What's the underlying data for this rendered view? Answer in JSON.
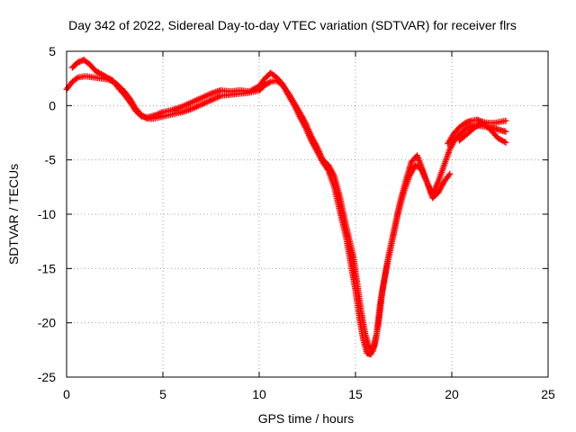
{
  "chart_data": {
    "type": "scatter",
    "title": "Day 342 of 2022, Sidereal Day-to-day VTEC variation (SDTVAR) for receiver flrs",
    "xlabel": "GPS time / hours",
    "ylabel": "SDTVAR / TECUs",
    "xlim": [
      0,
      25
    ],
    "ylim": [
      -25,
      5
    ],
    "xticks": [
      0,
      5,
      10,
      15,
      20,
      25
    ],
    "yticks": [
      -25,
      -20,
      -15,
      -10,
      -5,
      0,
      5
    ],
    "grid": true,
    "marker": "plus",
    "color": "#ff0000",
    "series": [
      {
        "x": [
          0.0,
          0.3,
          0.6,
          1.0,
          1.4,
          1.8,
          2.2,
          2.6,
          3.0,
          3.3,
          3.6,
          3.9,
          4.2,
          4.5,
          5.0,
          5.5,
          6.0,
          6.5,
          7.0,
          7.5,
          8.0,
          8.5,
          9.0,
          9.5,
          10.0,
          10.3,
          10.6,
          10.9,
          11.2,
          11.5,
          11.8,
          12.1,
          12.4,
          12.7,
          13.0,
          13.3,
          13.6,
          13.9,
          14.2,
          14.5,
          14.7,
          14.9,
          15.1,
          15.3,
          15.5,
          15.7,
          15.9,
          16.1,
          16.3,
          16.6,
          16.9,
          17.2,
          17.5,
          17.8,
          18.1,
          18.4,
          18.7,
          19.0,
          19.3,
          19.6,
          19.9,
          20.2,
          20.5,
          20.8,
          21.2,
          21.6,
          22.0,
          22.4,
          22.8
        ],
        "y": [
          1.5,
          2.2,
          2.6,
          2.7,
          2.6,
          2.5,
          2.4,
          2.0,
          1.3,
          0.6,
          -0.3,
          -0.9,
          -1.2,
          -1.2,
          -1.0,
          -0.8,
          -0.6,
          -0.3,
          0.1,
          0.5,
          0.9,
          1.0,
          1.1,
          1.2,
          1.4,
          1.9,
          2.2,
          2.3,
          1.9,
          1.2,
          0.3,
          -0.6,
          -1.6,
          -2.8,
          -3.8,
          -5.0,
          -5.5,
          -6.5,
          -8.5,
          -11.0,
          -12.5,
          -14.0,
          -16.5,
          -19.0,
          -21.0,
          -22.2,
          -22.6,
          -21.0,
          -18.0,
          -15.0,
          -12.5,
          -10.0,
          -8.0,
          -6.5,
          -5.5,
          -5.8,
          -7.0,
          -8.2,
          -7.0,
          -5.5,
          -4.0,
          -3.0,
          -2.5,
          -2.0,
          -1.8,
          -1.9,
          -2.0,
          -2.2,
          -2.4
        ]
      },
      {
        "x": [
          0.3,
          0.6,
          0.9,
          1.2,
          1.5,
          1.8,
          2.1,
          2.4,
          2.7,
          3.0,
          3.3,
          3.6,
          3.9,
          4.2,
          4.6,
          5.0,
          5.5,
          6.0,
          6.5,
          7.0,
          7.5,
          8.0,
          8.5,
          9.0,
          9.5,
          10.0,
          10.3,
          10.6,
          10.9,
          11.2,
          11.5,
          11.8,
          12.1,
          12.4,
          12.7,
          13.0,
          13.3,
          13.6,
          13.9,
          14.2,
          14.5,
          14.8,
          15.0,
          15.2,
          15.4,
          15.6,
          15.8,
          16.0,
          16.2,
          16.4,
          16.7,
          17.0,
          17.3,
          17.6,
          17.9,
          18.2,
          18.4,
          18.7,
          19.0,
          19.3,
          19.6,
          19.9
        ],
        "y": [
          3.5,
          4.0,
          4.2,
          3.8,
          3.2,
          2.9,
          2.6,
          2.3,
          1.6,
          1.0,
          0.3,
          -0.5,
          -1.0,
          -1.1,
          -0.9,
          -0.6,
          -0.4,
          -0.1,
          0.3,
          0.7,
          1.1,
          1.4,
          1.3,
          1.4,
          1.3,
          1.8,
          2.5,
          3.0,
          2.6,
          2.0,
          1.0,
          0.1,
          -1.0,
          -2.0,
          -3.2,
          -4.2,
          -5.2,
          -6.0,
          -7.5,
          -9.8,
          -12.0,
          -15.0,
          -17.0,
          -19.5,
          -21.5,
          -22.8,
          -22.9,
          -22.0,
          -20.0,
          -17.0,
          -14.0,
          -11.5,
          -9.0,
          -7.0,
          -5.2,
          -4.6,
          -5.5,
          -7.0,
          -8.5,
          -8.0,
          -7.0,
          -6.3
        ]
      },
      {
        "x": [
          19.8,
          20.1,
          20.4,
          20.7,
          21.0,
          21.3,
          21.6,
          21.9,
          22.2,
          22.5,
          22.8
        ],
        "y": [
          -3.5,
          -2.6,
          -2.0,
          -1.6,
          -1.4,
          -1.3,
          -1.5,
          -1.6,
          -1.6,
          -1.5,
          -1.4
        ]
      },
      {
        "x": [
          20.4,
          20.8,
          21.2,
          21.6,
          22.0,
          22.4,
          22.8
        ],
        "y": [
          -3.2,
          -2.6,
          -2.0,
          -1.6,
          -2.2,
          -3.0,
          -3.4
        ]
      }
    ]
  }
}
